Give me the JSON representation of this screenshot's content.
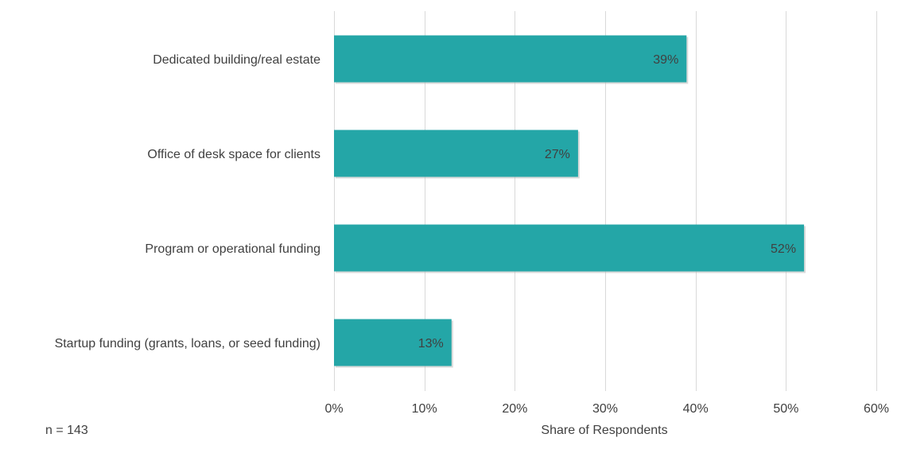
{
  "chart_data": {
    "type": "bar",
    "orientation": "horizontal",
    "categories": [
      "Dedicated building/real estate",
      "Office of desk space for clients",
      "Program or operational funding",
      "Startup funding (grants, loans, or seed funding)"
    ],
    "values": [
      39,
      27,
      52,
      13
    ],
    "data_labels": [
      "39%",
      "27%",
      "52%",
      "13%"
    ],
    "xlabel": "Share of Respondents",
    "ylabel": "",
    "xlim": [
      0,
      60
    ],
    "x_ticks": [
      0,
      10,
      20,
      30,
      40,
      50,
      60
    ],
    "x_tick_labels": [
      "0%",
      "10%",
      "20%",
      "30%",
      "40%",
      "50%",
      "60%"
    ],
    "grid": "vertical",
    "bar_color": "#24A6A7"
  },
  "note": "n = 143"
}
